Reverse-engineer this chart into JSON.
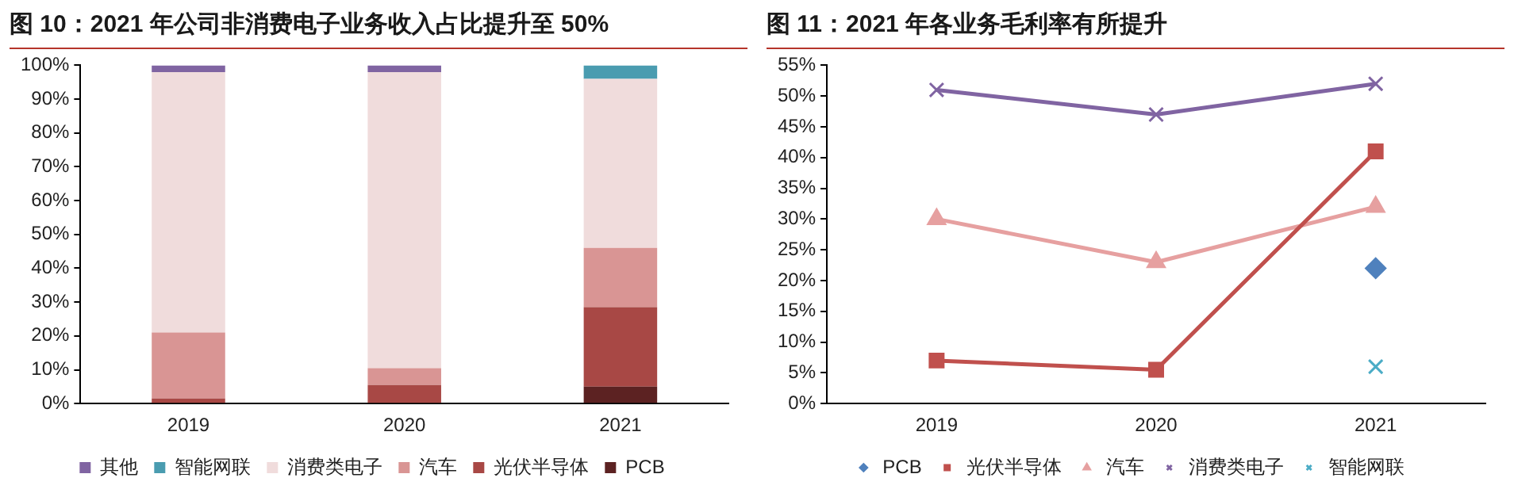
{
  "chart_data": [
    {
      "type": "bar",
      "title": "图 10：2021 年公司非消费电子业务收入占比提升至 50%",
      "stacked": true,
      "categories": [
        "2019",
        "2020",
        "2021"
      ],
      "series": [
        {
          "name": "PCB",
          "color": "#5c2222",
          "values": [
            0,
            0,
            5
          ]
        },
        {
          "name": "光伏半导体",
          "color": "#a84845",
          "values": [
            1.5,
            5.5,
            23.5
          ]
        },
        {
          "name": "汽车",
          "color": "#d99594",
          "values": [
            19.5,
            5,
            17.5
          ]
        },
        {
          "name": "消费类电子",
          "color": "#f0dcdc",
          "values": [
            77,
            87.5,
            50
          ]
        },
        {
          "name": "智能网联",
          "color": "#4a9cb0",
          "values": [
            0,
            0,
            4
          ]
        },
        {
          "name": "其他",
          "color": "#8064a2",
          "values": [
            2,
            2,
            0
          ]
        }
      ],
      "ylim": [
        0,
        100
      ],
      "yticks": [
        {
          "value": 0,
          "label": "0%"
        },
        {
          "value": 10,
          "label": "10%"
        },
        {
          "value": 20,
          "label": "20%"
        },
        {
          "value": 30,
          "label": "30%"
        },
        {
          "value": 40,
          "label": "40%"
        },
        {
          "value": 50,
          "label": "50%"
        },
        {
          "value": 60,
          "label": "60%"
        },
        {
          "value": 70,
          "label": "70%"
        },
        {
          "value": 80,
          "label": "80%"
        },
        {
          "value": 90,
          "label": "90%"
        },
        {
          "value": 100,
          "label": "100%"
        }
      ],
      "grid": false,
      "legend": "bottom"
    },
    {
      "type": "line",
      "title": "图 11：2021 年各业务毛利率有所提升",
      "categories": [
        "2019",
        "2020",
        "2021"
      ],
      "series": [
        {
          "name": "PCB",
          "color": "#4f81bd",
          "marker": "diamond",
          "values": [
            null,
            null,
            22
          ]
        },
        {
          "name": "光伏半导体",
          "color": "#c0504d",
          "marker": "square",
          "values": [
            7,
            5.5,
            41
          ]
        },
        {
          "name": "汽车",
          "color": "#e6a0a0",
          "marker": "triangle",
          "values": [
            30,
            23,
            32
          ]
        },
        {
          "name": "消费类电子",
          "color": "#8064a2",
          "marker": "cross",
          "values": [
            51,
            47,
            52
          ]
        },
        {
          "name": "智能网联",
          "color": "#4bacc6",
          "marker": "cross",
          "values": [
            null,
            null,
            6
          ]
        }
      ],
      "ylim": [
        0,
        55
      ],
      "yticks": [
        {
          "value": 0,
          "label": "0%"
        },
        {
          "value": 5,
          "label": "5%"
        },
        {
          "value": 10,
          "label": "10%"
        },
        {
          "value": 15,
          "label": "15%"
        },
        {
          "value": 20,
          "label": "20%"
        },
        {
          "value": 25,
          "label": "25%"
        },
        {
          "value": 30,
          "label": "30%"
        },
        {
          "value": 35,
          "label": "35%"
        },
        {
          "value": 40,
          "label": "40%"
        },
        {
          "value": 45,
          "label": "45%"
        },
        {
          "value": 50,
          "label": "50%"
        },
        {
          "value": 55,
          "label": "55%"
        }
      ],
      "grid": false,
      "legend": "bottom"
    }
  ]
}
